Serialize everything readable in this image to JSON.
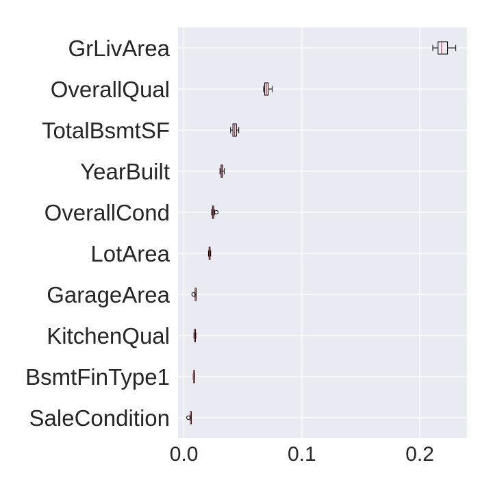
{
  "chart_data": {
    "type": "boxplot",
    "orientation": "horizontal",
    "title": "",
    "xlabel": "",
    "ylabel": "",
    "xlim": [
      -0.005,
      0.24
    ],
    "x_ticks": [
      0.0,
      0.1,
      0.2
    ],
    "x_tick_labels": [
      "0.0",
      "0.1",
      "0.2"
    ],
    "grid": true,
    "colors": {
      "background": "#eaeaf2",
      "grid": "#ffffff",
      "box": "#000000",
      "median": "#c44e52"
    },
    "categories": [
      "GrLivArea",
      "OverallQual",
      "TotalBsmtSF",
      "YearBuilt",
      "OverallCond",
      "LotArea",
      "GarageArea",
      "KitchenQual",
      "BsmtFinType1",
      "SaleCondition"
    ],
    "boxes": [
      {
        "category": "GrLivArea",
        "whisker_low": 0.211,
        "q1": 0.2155,
        "median": 0.2185,
        "q3": 0.2235,
        "whisker_high": 0.2305,
        "outliers": []
      },
      {
        "category": "OverallQual",
        "whisker_low": 0.0675,
        "q1": 0.0685,
        "median": 0.07,
        "q3": 0.0715,
        "whisker_high": 0.0748,
        "outliers": []
      },
      {
        "category": "TotalBsmtSF",
        "whisker_low": 0.0395,
        "q1": 0.0415,
        "median": 0.0428,
        "q3": 0.0445,
        "whisker_high": 0.0465,
        "outliers": []
      },
      {
        "category": "YearBuilt",
        "whisker_low": 0.0305,
        "q1": 0.0315,
        "median": 0.032,
        "q3": 0.0328,
        "whisker_high": 0.0342,
        "outliers": []
      },
      {
        "category": "OverallCond",
        "whisker_low": 0.0235,
        "q1": 0.0242,
        "median": 0.0247,
        "q3": 0.0253,
        "whisker_high": 0.0258,
        "outliers": [
          0.0275
        ]
      },
      {
        "category": "LotArea",
        "whisker_low": 0.0208,
        "q1": 0.0213,
        "median": 0.0217,
        "q3": 0.0222,
        "whisker_high": 0.0227,
        "outliers": []
      },
      {
        "category": "GarageArea",
        "whisker_low": 0.0093,
        "q1": 0.0095,
        "median": 0.0097,
        "q3": 0.0099,
        "whisker_high": 0.0102,
        "outliers": [
          0.0082
        ]
      },
      {
        "category": "KitchenQual",
        "whisker_low": 0.0085,
        "q1": 0.0089,
        "median": 0.0092,
        "q3": 0.0096,
        "whisker_high": 0.0101,
        "outliers": []
      },
      {
        "category": "BsmtFinType1",
        "whisker_low": 0.0079,
        "q1": 0.0081,
        "median": 0.0082,
        "q3": 0.0084,
        "whisker_high": 0.0086,
        "outliers": []
      },
      {
        "category": "SaleCondition",
        "whisker_low": 0.0052,
        "q1": 0.0054,
        "median": 0.0055,
        "q3": 0.0057,
        "whisker_high": 0.0059,
        "outliers": [
          0.0038
        ]
      }
    ]
  }
}
